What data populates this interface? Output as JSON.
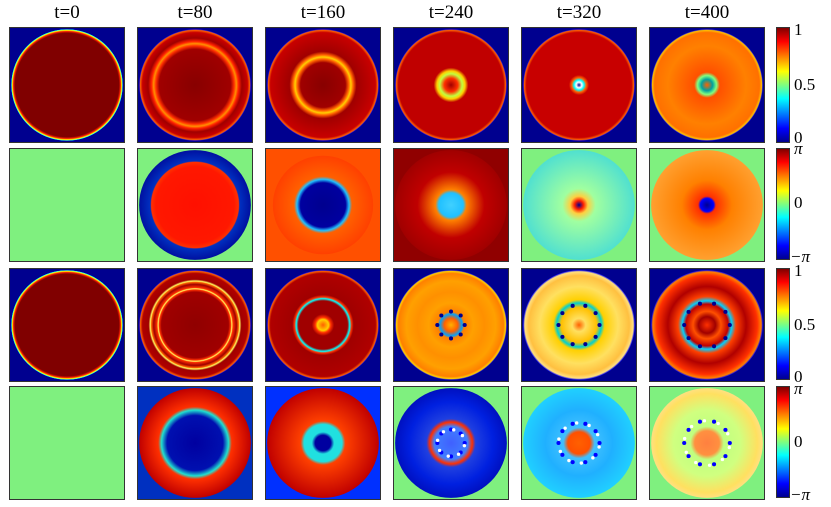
{
  "columns": [
    {
      "label": "t=0"
    },
    {
      "label": "t=80"
    },
    {
      "label": "t=160"
    },
    {
      "label": "t=240"
    },
    {
      "label": "t=320"
    },
    {
      "label": "t=400"
    }
  ],
  "rows": [
    {
      "kind": "amplitude",
      "component": 1
    },
    {
      "kind": "phase",
      "component": 1
    },
    {
      "kind": "amplitude",
      "component": 2
    },
    {
      "kind": "phase",
      "component": 2
    }
  ],
  "colorbars": [
    {
      "ticks": [
        "1",
        "0.5",
        "0"
      ]
    },
    {
      "ticks": [
        "π",
        "0",
        "−π"
      ]
    },
    {
      "ticks": [
        "1",
        "0.5",
        "0"
      ]
    },
    {
      "ticks": [
        "π",
        "0",
        "−π"
      ]
    }
  ],
  "colors": {
    "background_low": "#00008f",
    "background_mid": "#7ff07f",
    "high": "#800000",
    "colormap": [
      "#00008f",
      "#0000ff",
      "#00ffff",
      "#ffff00",
      "#ff0000",
      "#800000"
    ]
  }
}
